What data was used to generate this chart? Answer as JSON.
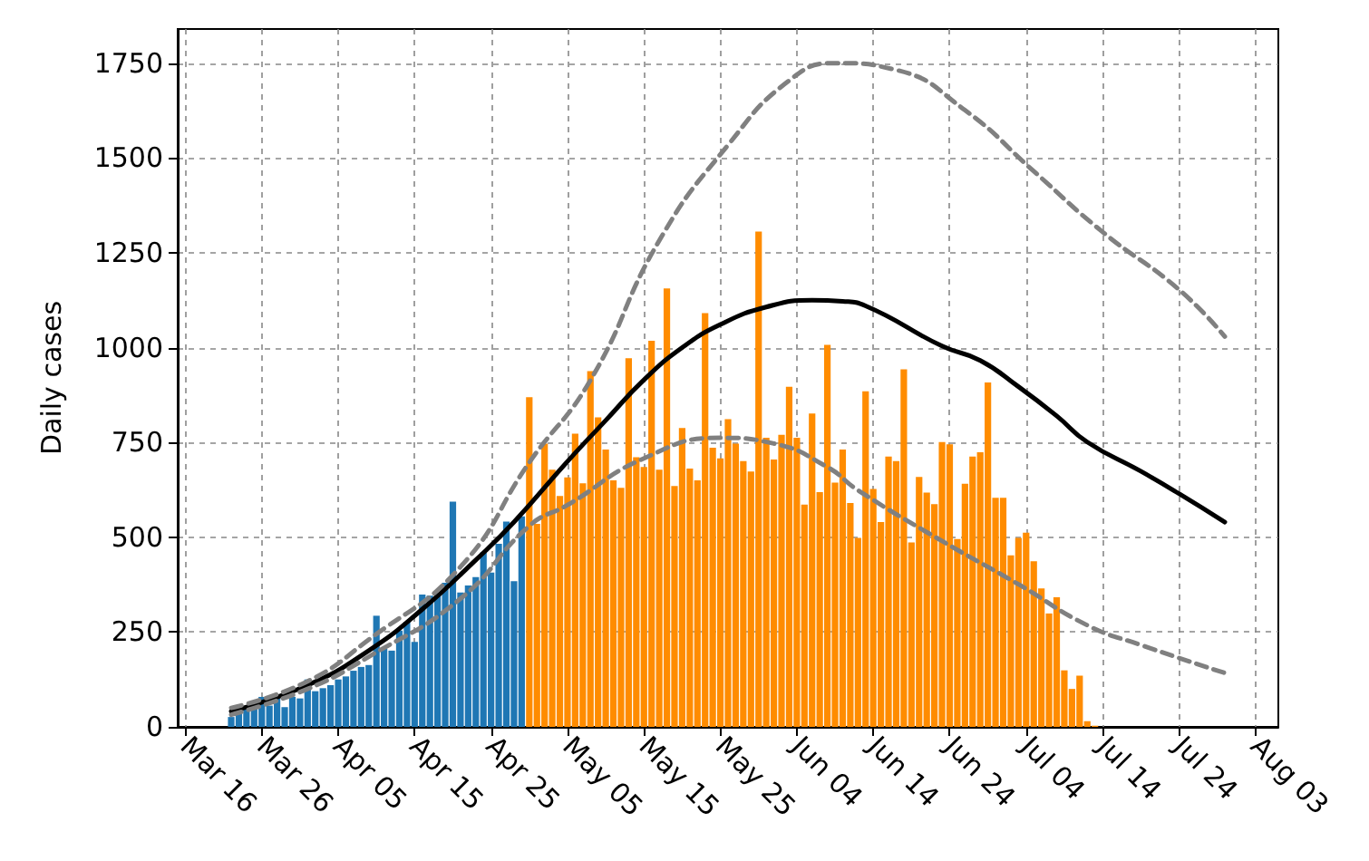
{
  "chart_data": {
    "type": "bar",
    "ylabel": "Daily cases",
    "xlim": [
      "--03-15",
      "--08-06"
    ],
    "ylim": [
      0,
      1840
    ],
    "yticks": [
      0,
      250,
      500,
      750,
      1000,
      1250,
      1500,
      1750
    ],
    "xticks": [
      {
        "value": "--03-16",
        "label": "Mar 16"
      },
      {
        "value": "--03-26",
        "label": "Mar 26"
      },
      {
        "value": "--04-05",
        "label": "Apr 05"
      },
      {
        "value": "--04-15",
        "label": "Apr 15"
      },
      {
        "value": "--04-25",
        "label": "Apr 25"
      },
      {
        "value": "--05-05",
        "label": "May 05"
      },
      {
        "value": "--05-15",
        "label": "May 15"
      },
      {
        "value": "--05-25",
        "label": "May 25"
      },
      {
        "value": "--06-04",
        "label": "Jun 04"
      },
      {
        "value": "--06-14",
        "label": "Jun 14"
      },
      {
        "value": "--06-24",
        "label": "Jun 24"
      },
      {
        "value": "--07-04",
        "label": "Jul 04"
      },
      {
        "value": "--07-14",
        "label": "Jul 14"
      },
      {
        "value": "--07-24",
        "label": "Jul 24"
      },
      {
        "value": "--08-03",
        "label": "Aug 03"
      }
    ],
    "grid": true,
    "marker": "none",
    "series": [
      {
        "color": "#1f77b4",
        "x": [
          "--03-22",
          "--03-23",
          "--03-24",
          "--03-25",
          "--03-26",
          "--03-27",
          "--03-28",
          "--03-29",
          "--03-30",
          "--03-31",
          "--04-01",
          "--04-02",
          "--04-03",
          "--04-04",
          "--04-05",
          "--04-06",
          "--04-07",
          "--04-08",
          "--04-09",
          "--04-10",
          "--04-11",
          "--04-12",
          "--04-13",
          "--04-14",
          "--04-15",
          "--04-16",
          "--04-17",
          "--04-18",
          "--04-19",
          "--04-20",
          "--04-21",
          "--04-22",
          "--04-23",
          "--04-24",
          "--04-25",
          "--04-26",
          "--04-27",
          "--04-28",
          "--04-29"
        ],
        "values": [
          26,
          49,
          49,
          56,
          79,
          56,
          75,
          52,
          79,
          75,
          125,
          94,
          102,
          110,
          125,
          133,
          148,
          158,
          163,
          293,
          206,
          201,
          254,
          277,
          224,
          349,
          346,
          354,
          380,
          594,
          354,
          373,
          395,
          460,
          407,
          483,
          541,
          384,
          555
        ]
      },
      {
        "color": "#ff8c00",
        "x": [
          "--04-30",
          "--05-01",
          "--05-02",
          "--05-03",
          "--05-04",
          "--05-05",
          "--05-06",
          "--05-07",
          "--05-08",
          "--05-09",
          "--05-10",
          "--05-11",
          "--05-12",
          "--05-13",
          "--05-14",
          "--05-15",
          "--05-16",
          "--05-17",
          "--05-18",
          "--05-19",
          "--05-20",
          "--05-21",
          "--05-22",
          "--05-23",
          "--05-24",
          "--05-25",
          "--05-26",
          "--05-27",
          "--05-28",
          "--05-29",
          "--05-30",
          "--05-31",
          "--06-01",
          "--06-02",
          "--06-03",
          "--06-04",
          "--06-05",
          "--06-06",
          "--06-07",
          "--06-08",
          "--06-09",
          "--06-10",
          "--06-11",
          "--06-12",
          "--06-13",
          "--06-14",
          "--06-15",
          "--06-16",
          "--06-17",
          "--06-18",
          "--06-19",
          "--06-20",
          "--06-21",
          "--06-22",
          "--06-23",
          "--06-24",
          "--06-25",
          "--06-26",
          "--06-27",
          "--06-28",
          "--06-29",
          "--06-30",
          "--07-01",
          "--07-02",
          "--07-03",
          "--07-04",
          "--07-05",
          "--07-06",
          "--07-07",
          "--07-08",
          "--07-09",
          "--07-10",
          "--07-11",
          "--07-12",
          "--07-13"
        ],
        "values": [
          869,
          535,
          747,
          678,
          609,
          658,
          773,
          642,
          938,
          816,
          731,
          650,
          630,
          972,
          711,
          685,
          1018,
          678,
          1156,
          635,
          788,
          681,
          650,
          1091,
          736,
          708,
          811,
          747,
          701,
          673,
          1306,
          762,
          705,
          770,
          897,
          762,
          586,
          826,
          619,
          1007,
          644,
          731,
          590,
          498,
          885,
          627,
          540,
          713,
          701,
          943,
          486,
          659,
          618,
          587,
          751,
          745,
          495,
          641,
          713,
          724,
          908,
          604,
          604,
          452,
          498,
          512,
          437,
          365,
          299,
          342,
          149,
          100,
          135,
          15,
          3
        ]
      },
      {
        "type": "line",
        "color": "#000000",
        "line_style": "solid",
        "x": [
          "--03-22",
          "--04-01",
          "--04-09",
          "--04-16",
          "--04-23",
          "--04-28",
          "--05-05",
          "--05-10",
          "--05-15",
          "--05-20",
          "--05-25",
          "--05-31",
          "--06-06",
          "--06-10",
          "--06-13",
          "--06-23",
          "--06-28",
          "--07-03",
          "--07-08",
          "--07-12",
          "--07-19",
          "--07-24",
          "--07-30"
        ],
        "values": [
          41,
          110,
          201,
          310,
          440,
          540,
          700,
          808,
          915,
          1000,
          1061,
          1107,
          1125,
          1122,
          1110,
          1004,
          966,
          897,
          820,
          751,
          674,
          615,
          540
        ]
      },
      {
        "type": "line",
        "color": "#808080",
        "line_style": "dashed",
        "x": [
          "--03-22",
          "--04-01",
          "--04-09",
          "--04-21",
          "--04-30",
          "--05-08",
          "--05-17",
          "--05-26",
          "--06-03",
          "--06-09",
          "--06-17",
          "--06-26",
          "--07-05",
          "--07-14",
          "--07-24",
          "--07-30"
        ],
        "values": [
          50,
          120,
          230,
          422,
          697,
          914,
          1282,
          1534,
          1704,
          1750,
          1732,
          1626,
          1465,
          1305,
          1153,
          1029
        ]
      },
      {
        "type": "line",
        "color": "#808080",
        "line_style": "dashed",
        "x": [
          "--03-22",
          "--04-01",
          "--04-09",
          "--04-21",
          "--04-30",
          "--05-05",
          "--05-15",
          "--05-25",
          "--06-01",
          "--06-08",
          "--06-12",
          "--06-23",
          "--07-03",
          "--07-12",
          "--07-19",
          "--07-30"
        ],
        "values": [
          32,
          100,
          185,
          338,
          530,
          585,
          708,
          762,
          747,
          685,
          624,
          490,
          376,
          268,
          216,
          142
        ]
      }
    ]
  }
}
